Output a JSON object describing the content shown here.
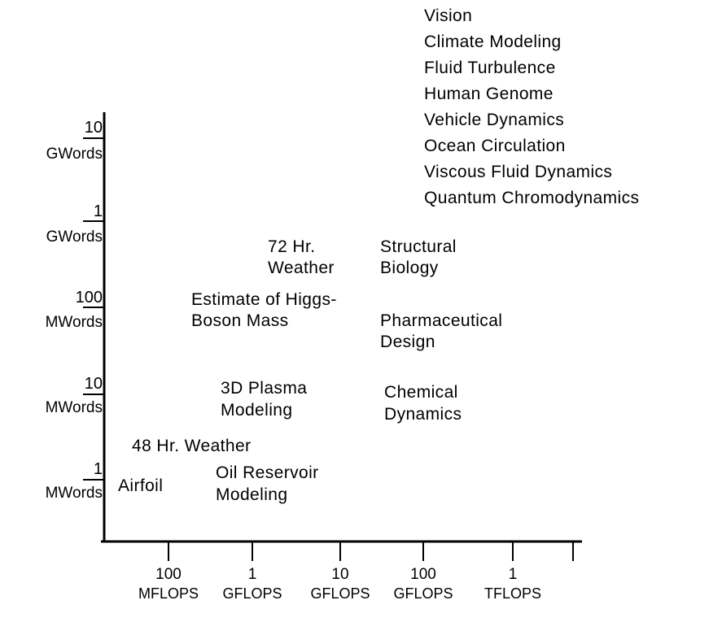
{
  "chart_data": {
    "type": "scatter",
    "x_ticks": [
      {
        "value": "100",
        "unit": "MFLOPS"
      },
      {
        "value": "1",
        "unit": "GFLOPS"
      },
      {
        "value": "10",
        "unit": "GFLOPS"
      },
      {
        "value": "100",
        "unit": "GFLOPS"
      },
      {
        "value": "1",
        "unit": "TFLOPS"
      }
    ],
    "y_ticks": [
      {
        "value": "1",
        "unit": "MWords"
      },
      {
        "value": "10",
        "unit": "MWords"
      },
      {
        "value": "100",
        "unit": "MWords"
      },
      {
        "value": "1",
        "unit": "GWords"
      },
      {
        "value": "10",
        "unit": "GWords"
      }
    ],
    "applications": [
      {
        "lines": [
          "Airfoil"
        ]
      },
      {
        "lines": [
          "48 Hr. Weather"
        ]
      },
      {
        "lines": [
          "Oil Reservoir",
          "Modeling"
        ]
      },
      {
        "lines": [
          "3D Plasma",
          "Modeling"
        ]
      },
      {
        "lines": [
          "Chemical",
          "Dynamics"
        ]
      },
      {
        "lines": [
          "Estimate of Higgs-",
          "Boson Mass"
        ]
      },
      {
        "lines": [
          "Pharmaceutical",
          "Design"
        ]
      },
      {
        "lines": [
          "72 Hr.",
          "Weather"
        ]
      },
      {
        "lines": [
          "Structural",
          "Biology"
        ]
      },
      {
        "lines": [
          "Vision",
          "Climate Modeling",
          "Fluid Turbulence",
          "Human Genome",
          "Vehicle Dynamics",
          "Ocean Circulation",
          "Viscous Fluid Dynamics",
          "Quantum Chromodynamics"
        ]
      }
    ]
  }
}
